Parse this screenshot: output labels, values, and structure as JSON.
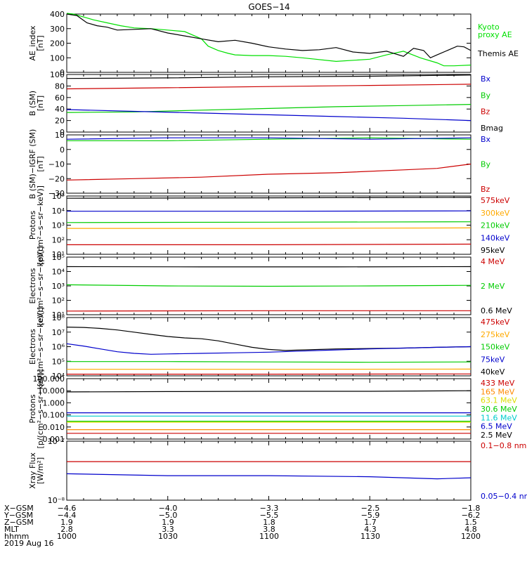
{
  "title": "GOES−14",
  "chart_data": [
    {
      "id": "ae",
      "type": "line",
      "ylabel": [
        "AE_index",
        "[nT]"
      ],
      "ylim": [
        0,
        400
      ],
      "yticks": [
        0,
        100,
        200,
        300,
        400
      ],
      "ytick_labels": [
        "0",
        "100",
        "200",
        "300",
        "400"
      ],
      "series": [
        {
          "name": "Kyoto\nproxy AE",
          "color": "#00e000",
          "x": [
            0,
            2,
            5,
            8,
            12,
            16,
            20,
            25,
            30,
            35,
            40,
            42,
            45,
            48,
            50,
            55,
            60,
            65,
            70,
            80,
            90,
            95,
            100,
            105,
            110,
            112,
            115,
            120
          ],
          "y": [
            405,
            400,
            380,
            360,
            340,
            320,
            305,
            300,
            290,
            280,
            230,
            180,
            150,
            130,
            120,
            115,
            115,
            110,
            100,
            75,
            90,
            120,
            145,
            100,
            65,
            45,
            45,
            50
          ]
        },
        {
          "name": "Themis AE",
          "color": "#000000",
          "x": [
            0,
            3,
            6,
            9,
            12,
            15,
            20,
            25,
            30,
            35,
            40,
            45,
            50,
            55,
            60,
            65,
            70,
            75,
            80,
            85,
            90,
            95,
            100,
            103,
            106,
            108,
            110,
            113,
            116,
            118,
            120
          ],
          "y": [
            400,
            390,
            340,
            320,
            310,
            290,
            295,
            300,
            270,
            250,
            230,
            210,
            220,
            200,
            175,
            160,
            150,
            155,
            170,
            140,
            130,
            145,
            110,
            165,
            150,
            100,
            120,
            150,
            180,
            175,
            150
          ]
        }
      ]
    },
    {
      "id": "bsm",
      "type": "line",
      "ylabel": [
        "B (SM)",
        "[nT]"
      ],
      "ylim": [
        0,
        100
      ],
      "yticks": [
        0,
        20,
        40,
        60,
        80,
        100
      ],
      "ytick_labels": [
        "0",
        "20",
        "40",
        "60",
        "80",
        "100"
      ],
      "legend": [
        {
          "name": "Bx",
          "color": "#0000cc"
        },
        {
          "name": "By",
          "color": "#00cc00"
        },
        {
          "name": "Bz",
          "color": "#cc0000"
        },
        {
          "name": "Bmag",
          "color": "#000000"
        }
      ],
      "series": [
        {
          "name": "Bmag",
          "color": "#000000",
          "x": [
            0,
            30,
            60,
            90,
            120
          ],
          "y": [
            93,
            94,
            96,
            97,
            99
          ]
        },
        {
          "name": "Bz",
          "color": "#cc0000",
          "x": [
            0,
            30,
            60,
            90,
            120
          ],
          "y": [
            75,
            77,
            79,
            81,
            83
          ]
        },
        {
          "name": "By",
          "color": "#00cc00",
          "x": [
            0,
            20,
            40,
            60,
            80,
            100,
            120
          ],
          "y": [
            34,
            35,
            38,
            41,
            44,
            46,
            48
          ]
        },
        {
          "name": "Bx",
          "color": "#0000cc",
          "x": [
            0,
            20,
            40,
            60,
            80,
            100,
            120
          ],
          "y": [
            39,
            36,
            33,
            30,
            27,
            24,
            20
          ]
        }
      ]
    },
    {
      "id": "bdiff",
      "type": "line",
      "ylabel": [
        "B (SM)−IGRF (SM)",
        "[nT]"
      ],
      "ylim": [
        -30,
        10
      ],
      "yticks": [
        -30,
        -20,
        -10,
        0,
        10
      ],
      "ytick_labels": [
        "−30",
        "−20",
        "−10",
        "0",
        "10"
      ],
      "legend": [
        {
          "name": "Bx",
          "color": "#0000cc"
        },
        {
          "name": "By",
          "color": "#00cc00"
        },
        {
          "name": "Bz",
          "color": "#cc0000"
        }
      ],
      "series": [
        {
          "name": "Bz",
          "color": "#cc0000",
          "x": [
            0,
            20,
            40,
            60,
            80,
            100,
            110,
            120
          ],
          "y": [
            -21,
            -20,
            -19,
            -17,
            -16,
            -14,
            -13,
            -10
          ]
        },
        {
          "name": "By",
          "color": "#00cc00",
          "x": [
            0,
            30,
            60,
            90,
            120
          ],
          "y": [
            6,
            6,
            7,
            8,
            7
          ]
        },
        {
          "name": "Bx",
          "color": "#0000cc",
          "x": [
            0,
            30,
            60,
            90,
            120
          ],
          "y": [
            7,
            8,
            8,
            7,
            8
          ]
        }
      ]
    },
    {
      "id": "protons_low",
      "type": "line",
      "log": true,
      "ylabel": [
        "Protons",
        "[p/(cm²−s−sr−keV)]"
      ],
      "ylim": [
        10,
        100000
      ],
      "yticks": [
        10,
        100,
        1000,
        10000,
        100000
      ],
      "ytick_labels": [
        "10¹",
        "10²",
        "10³",
        "10⁴",
        "10⁵"
      ],
      "legend": [
        {
          "name": "575keV",
          "color": "#cc0000"
        },
        {
          "name": "300keV",
          "color": "#ffaa00"
        },
        {
          "name": "210keV",
          "color": "#00cc00"
        },
        {
          "name": "140keV",
          "color": "#0000cc"
        },
        {
          "name": "95keV",
          "color": "#000000"
        }
      ],
      "series": [
        {
          "name": "95keV",
          "color": "#000000",
          "x": [
            0,
            60,
            120
          ],
          "y": [
            70000,
            75000,
            80000
          ]
        },
        {
          "name": "140keV",
          "color": "#0000cc",
          "x": [
            0,
            60,
            120
          ],
          "y": [
            9000,
            9000,
            9500
          ]
        },
        {
          "name": "210keV",
          "color": "#00cc00",
          "x": [
            0,
            60,
            120
          ],
          "y": [
            1500,
            1600,
            1700
          ]
        },
        {
          "name": "300keV",
          "color": "#ffaa00",
          "x": [
            0,
            60,
            120
          ],
          "y": [
            600,
            600,
            650
          ]
        },
        {
          "name": "575keV",
          "color": "#cc0000",
          "x": [
            0,
            60,
            120
          ],
          "y": [
            45,
            45,
            50
          ]
        }
      ]
    },
    {
      "id": "electrons_high",
      "type": "line",
      "log": true,
      "ylabel": [
        "Electrons",
        "[e/(cm²−s−sr−keV)]"
      ],
      "ylim": [
        10,
        100000
      ],
      "yticks": [
        10,
        100,
        1000,
        10000,
        100000
      ],
      "ytick_labels": [
        "10¹",
        "10²",
        "10³",
        "10⁴",
        "10⁵"
      ],
      "legend": [
        {
          "name": "4 MeV",
          "color": "#cc0000"
        },
        {
          "name": "2 MeV",
          "color": "#00cc00"
        },
        {
          "name": "0.6 MeV",
          "color": "#000000"
        }
      ],
      "series": [
        {
          "name": "0.6 MeV",
          "color": "#000000",
          "x": [
            0,
            40,
            80,
            120
          ],
          "y": [
            22000,
            21000,
            21000,
            22000
          ]
        },
        {
          "name": "2 MeV",
          "color": "#00cc00",
          "x": [
            0,
            30,
            60,
            90,
            120
          ],
          "y": [
            1200,
            1000,
            950,
            1000,
            1100
          ]
        },
        {
          "name": "4 MeV",
          "color": "#cc0000",
          "x": [
            0,
            60,
            120
          ],
          "y": [
            18,
            19,
            19
          ]
        }
      ]
    },
    {
      "id": "electrons_low",
      "type": "line",
      "log": true,
      "ylabel": [
        "Electrons",
        "[e/(cm²−s−sr−keV)]"
      ],
      "ylim": [
        10000,
        100000000
      ],
      "yticks": [
        10000,
        100000,
        1000000,
        10000000,
        100000000
      ],
      "ytick_labels": [
        "10⁴",
        "10⁵",
        "10⁶",
        "10⁷",
        "10⁸"
      ],
      "legend": [
        {
          "name": "475keV",
          "color": "#cc0000"
        },
        {
          "name": "275keV",
          "color": "#ffaa00"
        },
        {
          "name": "150keV",
          "color": "#00cc00"
        },
        {
          "name": "75keV",
          "color": "#0000cc"
        },
        {
          "name": "40keV",
          "color": "#000000"
        }
      ],
      "series": [
        {
          "name": "40keV",
          "color": "#000000",
          "x": [
            0,
            5,
            10,
            15,
            20,
            25,
            30,
            35,
            40,
            45,
            50,
            55,
            60,
            65,
            70,
            80,
            90,
            100,
            110,
            120
          ],
          "y": [
            22000000,
            21000000,
            18000000,
            14000000,
            10000000,
            7000000,
            5000000,
            4000000,
            3500000,
            2500000,
            1500000,
            900000,
            650000,
            550000,
            600000,
            700000,
            750000,
            800000,
            900000,
            1000000
          ]
        },
        {
          "name": "75keV",
          "color": "#0000cc",
          "x": [
            0,
            5,
            10,
            15,
            20,
            25,
            30,
            40,
            50,
            60,
            70,
            80,
            90,
            100,
            110,
            120
          ],
          "y": [
            1600000,
            1100000,
            700000,
            450000,
            350000,
            300000,
            320000,
            350000,
            380000,
            420000,
            500000,
            600000,
            700000,
            800000,
            900000,
            1000000
          ]
        },
        {
          "name": "150keV",
          "color": "#00cc00",
          "x": [
            0,
            30,
            60,
            90,
            120
          ],
          "y": [
            95000,
            95000,
            90000,
            85000,
            90000
          ]
        },
        {
          "name": "275keV",
          "color": "#ffaa00",
          "x": [
            0,
            60,
            120
          ],
          "y": [
            28000,
            28000,
            29000
          ]
        },
        {
          "name": "475keV",
          "color": "#cc0000",
          "x": [
            0,
            60,
            120
          ],
          "y": [
            13000,
            13000,
            13500
          ]
        }
      ]
    },
    {
      "id": "protons_high",
      "type": "line",
      "log": true,
      "ylabel": [
        "Protons",
        "[p/(cm²−s−sr−keV)]"
      ],
      "ylim": [
        0.001,
        100
      ],
      "yticks": [
        0.001,
        0.01,
        0.1,
        1,
        10,
        100
      ],
      "ytick_labels": [
        "0.001",
        "0.010",
        "0.100",
        "1.000",
        "10.000",
        "100.000"
      ],
      "legend": [
        {
          "name": "433 MeV",
          "color": "#cc0000"
        },
        {
          "name": "165 MeV",
          "color": "#ff8800"
        },
        {
          "name": "63.1 MeV",
          "color": "#dddd00"
        },
        {
          "name": "30.6 MeV",
          "color": "#00cc00"
        },
        {
          "name": "11.6 MeV",
          "color": "#00cccc"
        },
        {
          "name": "6.5 MeV",
          "color": "#0000cc"
        },
        {
          "name": "2.5 MeV",
          "color": "#000000"
        }
      ],
      "series": [
        {
          "name": "2.5 MeV",
          "color": "#000000",
          "x": [
            0,
            30,
            60,
            90,
            120
          ],
          "y": [
            8,
            8.5,
            9,
            9,
            10
          ]
        },
        {
          "name": "6.5 MeV",
          "color": "#0000cc",
          "x": [
            0,
            30,
            60,
            90,
            120
          ],
          "y": [
            0.15,
            0.15,
            0.15,
            0.15,
            0.15
          ]
        },
        {
          "name": "11.6 MeV",
          "color": "#00cccc",
          "x": [
            0,
            30,
            60,
            90,
            120
          ],
          "y": [
            0.08,
            0.08,
            0.08,
            0.08,
            0.08
          ]
        },
        {
          "name": "30.6 MeV",
          "color": "#00cc00",
          "x": [
            0,
            30,
            60,
            90,
            120
          ],
          "y": [
            0.03,
            0.03,
            0.03,
            0.03,
            0.03
          ]
        },
        {
          "name": "63.1 MeV",
          "color": "#dddd00",
          "x": [
            0,
            30,
            60,
            90,
            120
          ],
          "y": [
            0.025,
            0.025,
            0.025,
            0.025,
            0.025
          ]
        },
        {
          "name": "165 MeV",
          "color": "#ff8800",
          "x": [
            0,
            30,
            60,
            90,
            120
          ],
          "y": [
            0.006,
            0.006,
            0.006,
            0.006,
            0.006
          ]
        },
        {
          "name": "433 MeV",
          "color": "#cc0000",
          "x": [
            0,
            30,
            60,
            90,
            120
          ],
          "y": [
            0.003,
            0.003,
            0.003,
            0.003,
            0.003
          ]
        }
      ]
    },
    {
      "id": "xray",
      "type": "line",
      "log": true,
      "ylabel": [
        "Xray Flux",
        "[W/m²]"
      ],
      "ylim": [
        1e-08,
        1e-07
      ],
      "yticks": [
        1e-08,
        1e-07
      ],
      "ytick_labels": [
        "10⁻⁸",
        "10⁻⁷"
      ],
      "legend": [
        {
          "name": "0.1−0.8 nm",
          "color": "#cc0000"
        },
        {
          "name": "0.05−0.4 nm",
          "color": "#0000cc"
        }
      ],
      "series": [
        {
          "name": "0.1−0.8 nm",
          "color": "#cc0000",
          "x": [
            0,
            30,
            60,
            90,
            120
          ],
          "y": [
            4.5e-08,
            4.5e-08,
            4.5e-08,
            4.5e-08,
            4.5e-08
          ]
        },
        {
          "name": "0.05−0.4 nm",
          "color": "#0000cc",
          "x": [
            0,
            30,
            60,
            90,
            110,
            120
          ],
          "y": [
            2.8e-08,
            2.6e-08,
            2.6e-08,
            2.5e-08,
            2.3e-08,
            2.4e-08
          ]
        }
      ]
    }
  ],
  "x_axis": {
    "rows": [
      {
        "label": "X−GSM",
        "values": [
          "−4.6",
          "−4.0",
          "−3.3",
          "−2.5",
          "−1.8"
        ]
      },
      {
        "label": "Y−GSM",
        "values": [
          "−4.4",
          "−5.0",
          "−5.5",
          "−5.9",
          "−6.2"
        ]
      },
      {
        "label": "Z−GSM",
        "values": [
          "1.9",
          "1.9",
          "1.8",
          "1.7",
          "1.5"
        ]
      },
      {
        "label": "MLT",
        "values": [
          "2.8",
          "3.3",
          "3.8",
          "4.3",
          "4.8"
        ]
      },
      {
        "label": "hhmm",
        "values": [
          "1000",
          "1030",
          "1100",
          "1130",
          "1200"
        ]
      }
    ],
    "date": "2019 Aug 16"
  }
}
